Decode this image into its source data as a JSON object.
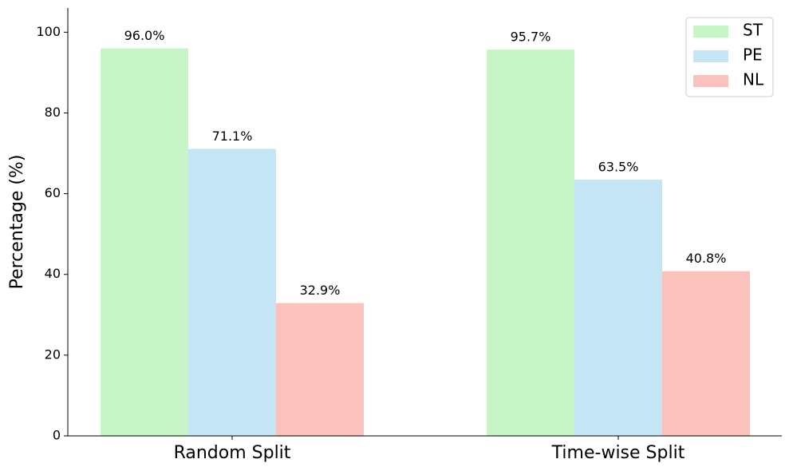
{
  "chart_data": {
    "type": "bar",
    "y_label": "Percentage (%)",
    "categories": [
      "Random Split",
      "Time-wise Split"
    ],
    "series": [
      {
        "name": "ST",
        "color": "#c8f5c8",
        "values": [
          96.0,
          95.7
        ],
        "value_labels": [
          "96.0%",
          "95.7%"
        ]
      },
      {
        "name": "PE",
        "color": "#c3e5f4",
        "values": [
          71.1,
          63.5
        ],
        "value_labels": [
          "71.1%",
          "63.5%"
        ]
      },
      {
        "name": "NL",
        "color": "#fac1bd",
        "values": [
          32.9,
          40.8
        ],
        "value_labels": [
          "32.9%",
          "40.8%"
        ]
      }
    ],
    "ylim": [
      0,
      106
    ],
    "yticks": [
      0,
      20,
      40,
      60,
      80,
      100
    ],
    "legend": "upper right"
  }
}
